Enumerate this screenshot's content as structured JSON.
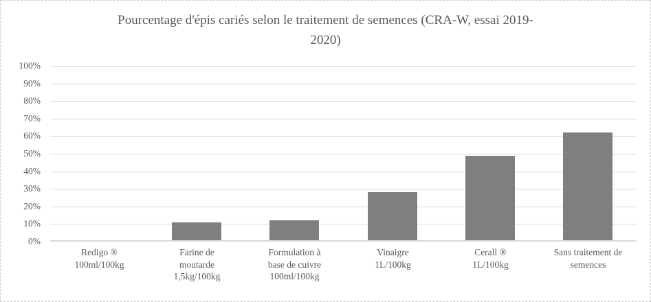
{
  "chart_data": {
    "type": "bar",
    "title": "Pourcentage d'épis cariés selon le traitement de semences (CRA-W, essai 2019-2020)",
    "title_lines": [
      "Pourcentage d'épis cariés selon le traitement de semences (CRA-W, essai 2019-",
      "2020)"
    ],
    "categories": [
      "Redigo ® 100ml/100kg",
      "Farine de moutarde 1,5kg/100kg",
      "Formulation à base de cuivre 100ml/100kg",
      "Vinaigre 1L/100kg",
      "Cerall ® 1L/100kg",
      "Sans traitement de semences"
    ],
    "category_label_lines": [
      [
        "Redigo ®",
        "100ml/100kg"
      ],
      [
        "Farine de",
        "moutarde",
        "1,5kg/100kg"
      ],
      [
        "Formulation à",
        "base de cuivre",
        "100ml/100kg"
      ],
      [
        "Vinaigre",
        "1L/100kg"
      ],
      [
        "Cerall ®",
        "1L/100kg"
      ],
      [
        "Sans traitement de",
        "semences"
      ]
    ],
    "values": [
      0,
      11,
      12,
      28,
      49,
      62
    ],
    "unit": "%",
    "xlabel": "",
    "ylabel": "",
    "ylim": [
      0,
      100
    ],
    "ytick_step": 10,
    "ytick_labels": [
      "0%",
      "10%",
      "20%",
      "30%",
      "40%",
      "50%",
      "60%",
      "70%",
      "80%",
      "90%",
      "100%"
    ],
    "grid": true,
    "legend": false,
    "colors": {
      "bar_fill": "#7f7f7f",
      "gridline": "#d9d9d9",
      "axis_line": "#d9d9d9",
      "text": "#595959",
      "background": "#ffffff",
      "frame_border": "#c9c9c9"
    }
  }
}
